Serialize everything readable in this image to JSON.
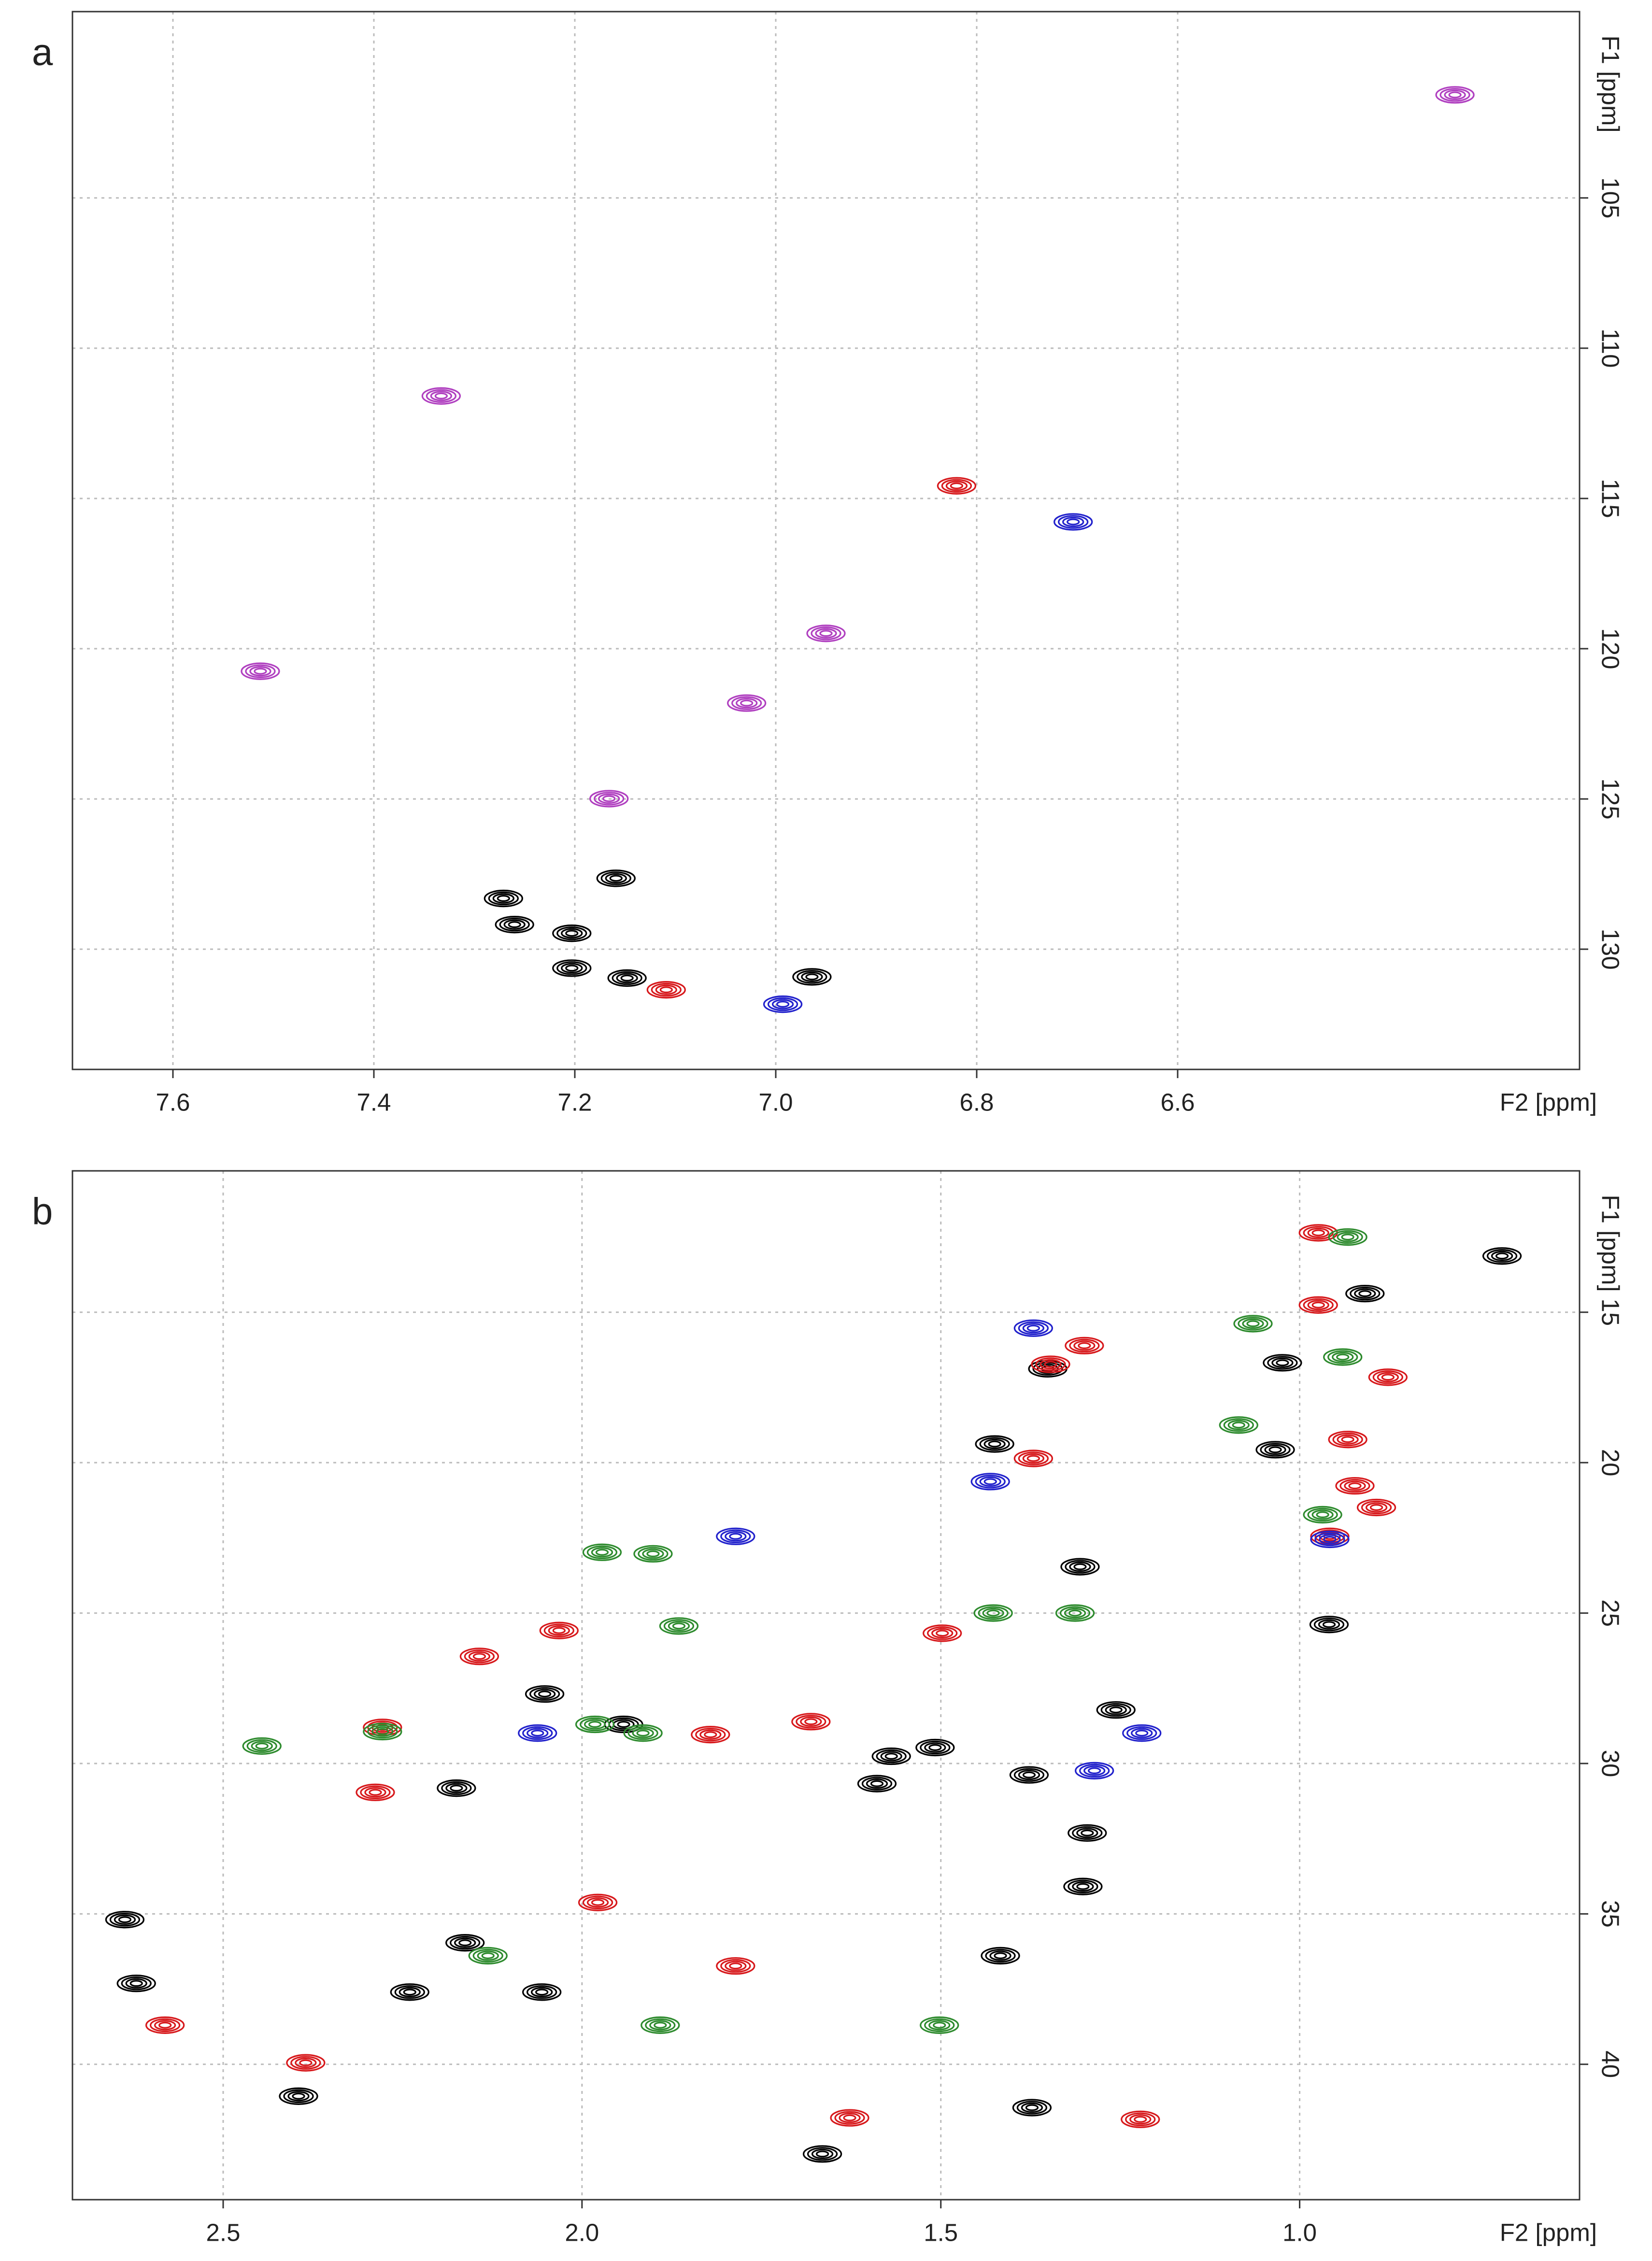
{
  "chart_data": [
    {
      "type": "scatter",
      "panel_label": "a",
      "xlabel": "F2 [ppm]",
      "ylabel": "F1 [ppm]",
      "xlim": [
        7.7,
        6.2
      ],
      "ylim": [
        98.8,
        134.0
      ],
      "xticks": [
        7.6,
        7.4,
        7.2,
        {
          "value": 7,
          "label": "7.0"
        },
        6.8,
        6.6
      ],
      "yticks": [
        105,
        110,
        115,
        120,
        125,
        130
      ],
      "grid": true,
      "series": [
        {
          "color": "#000000",
          "x": [
            7.159,
            7.26,
            7.203,
            7.203,
            6.964,
            7.148,
            7.271
          ],
          "values": [
            127.64,
            129.18,
            129.47,
            130.63,
            130.92,
            130.96,
            128.31
          ]
        },
        {
          "color": "#b040c0",
          "x": [
            6.324,
            7.333,
            7.513,
            7.166,
            6.95,
            7.029
          ],
          "values": [
            101.57,
            111.59,
            120.75,
            124.99,
            119.49,
            121.81
          ]
        },
        {
          "color": "#d7191c",
          "x": [
            6.82,
            7.109
          ],
          "values": [
            114.58,
            131.35
          ]
        },
        {
          "color": "#2222cc",
          "x": [
            6.704,
            6.993
          ],
          "values": [
            115.78,
            131.83
          ]
        }
      ]
    },
    {
      "type": "scatter",
      "panel_label": "b",
      "xlabel": "F2 [ppm]",
      "ylabel": "F1 [ppm]",
      "xlim": [
        2.71,
        0.61
      ],
      "ylim": [
        10.3,
        44.5
      ],
      "xticks": [
        2.5,
        {
          "value": 2,
          "label": "2.0"
        },
        1.5,
        {
          "value": 1,
          "label": "1.0"
        }
      ],
      "yticks": [
        15,
        20,
        25,
        30,
        35,
        40
      ],
      "grid": true,
      "series": [
        {
          "color": "#000000",
          "x": [
            0.718,
            0.909,
            1.351,
            1.425,
            1.024,
            1.034,
            1.306,
            1.569,
            1.508,
            1.589,
            1.377,
            1.296,
            1.256,
            1.302,
            1.417,
            2.637,
            2.621,
            2.24,
            2.163,
            2.056,
            2.175,
            2.395,
            1.665,
            1.373,
            1.942,
            2.052,
            0.959
          ],
          "values": [
            13.13,
            14.38,
            16.88,
            19.38,
            16.68,
            19.57,
            23.46,
            29.76,
            29.47,
            30.67,
            30.38,
            32.31,
            28.22,
            34.09,
            36.39,
            35.19,
            37.31,
            37.6,
            35.96,
            37.6,
            30.82,
            41.06,
            42.98,
            41.44,
            28.7,
            27.69,
            25.38
          ]
        },
        {
          "color": "#d7191c",
          "x": [
            0.974,
            0.974,
            1.3,
            1.347,
            1.371,
            0.877,
            0.933,
            0.923,
            0.893,
            0.958,
            2.032,
            2.143,
            2.278,
            2.288,
            1.978,
            1.786,
            2.581,
            1.498,
            1.681,
            2.385,
            1.627,
            1.222,
            1.821
          ],
          "values": [
            12.36,
            14.76,
            16.11,
            16.73,
            19.86,
            17.16,
            19.23,
            20.77,
            21.49,
            22.45,
            25.58,
            26.44,
            28.8,
            30.96,
            34.62,
            36.73,
            38.7,
            25.67,
            28.61,
            39.95,
            41.78,
            41.83,
            29.04
          ]
        },
        {
          "color": "#2222cc",
          "x": [
            1.371,
            1.786,
            2.062,
            1.22,
            1.286,
            0.958,
            1.431
          ],
          "values": [
            15.53,
            22.45,
            28.99,
            28.99,
            30.24,
            22.55,
            20.63
          ]
        },
        {
          "color": "#2e8b2e",
          "x": [
            0.933,
            1.065,
            0.94,
            1.085,
            1.972,
            1.901,
            1.865,
            2.278,
            1.982,
            1.915,
            2.446,
            2.131,
            1.891,
            1.502,
            1.313,
            1.427,
            0.968
          ],
          "values": [
            12.5,
            15.38,
            16.49,
            18.75,
            22.98,
            23.03,
            25.43,
            28.94,
            28.7,
            28.99,
            29.42,
            36.39,
            38.7,
            38.7,
            25.0,
            25.0,
            21.73
          ]
        }
      ]
    }
  ]
}
